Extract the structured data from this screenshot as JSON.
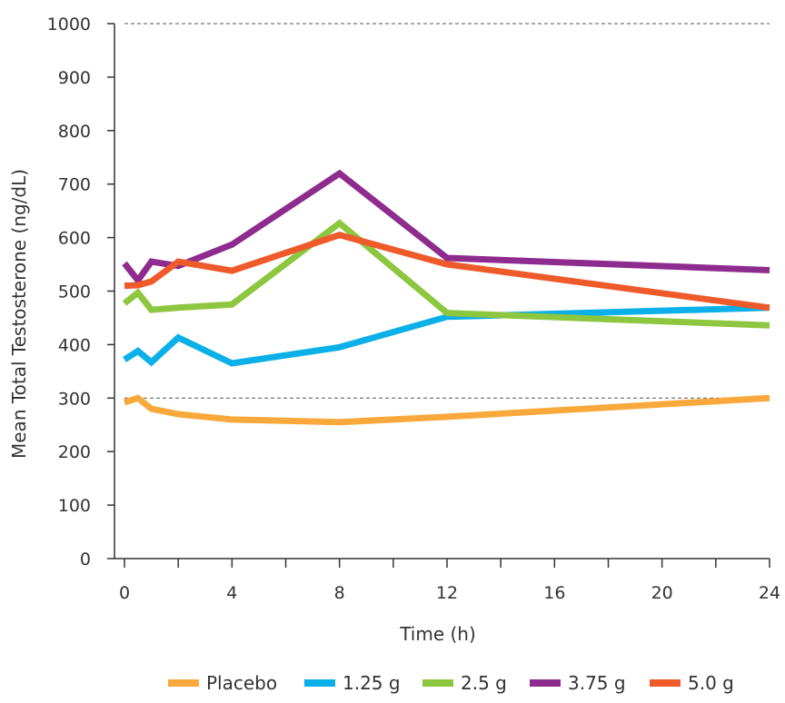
{
  "chart_data": {
    "type": "line",
    "title": "",
    "xlabel": "Time (h)",
    "ylabel": "Mean Total Testosterone (ng/dL)",
    "xlim": [
      0,
      24
    ],
    "ylim": [
      0,
      1000
    ],
    "xticks": [
      0,
      4,
      8,
      12,
      16,
      20,
      24
    ],
    "yticks": [
      0,
      100,
      200,
      300,
      400,
      500,
      600,
      700,
      800,
      900,
      1000
    ],
    "reference_lines": [
      300,
      1000
    ],
    "grid": false,
    "legend_position": "bottom",
    "series": [
      {
        "name": "Placebo",
        "color": "#F9A93B",
        "x": [
          0,
          0.5,
          1,
          2,
          4,
          8,
          12,
          24
        ],
        "y": [
          292,
          300,
          280,
          270,
          260,
          255,
          265,
          300
        ]
      },
      {
        "name": "1.25 g",
        "color": "#0CB0E8",
        "x": [
          0,
          0.5,
          1,
          2,
          4,
          8,
          12,
          24
        ],
        "y": [
          372,
          388,
          367,
          413,
          365,
          395,
          452,
          469
        ]
      },
      {
        "name": "2.5 g",
        "color": "#8DC63F",
        "x": [
          0,
          0.5,
          1,
          2,
          4,
          8,
          12,
          24
        ],
        "y": [
          477,
          497,
          465,
          469,
          475,
          627,
          459,
          436
        ]
      },
      {
        "name": "3.75 g",
        "color": "#8E2B8E",
        "x": [
          0,
          0.5,
          1,
          2,
          4,
          8,
          12,
          24
        ],
        "y": [
          552,
          520,
          555,
          547,
          587,
          720,
          562,
          539
        ]
      },
      {
        "name": "5.0 g",
        "color": "#EF5A2A",
        "x": [
          0,
          0.5,
          1,
          2,
          4,
          8,
          12,
          24
        ],
        "y": [
          510,
          511,
          518,
          555,
          538,
          605,
          550,
          469
        ]
      }
    ]
  }
}
